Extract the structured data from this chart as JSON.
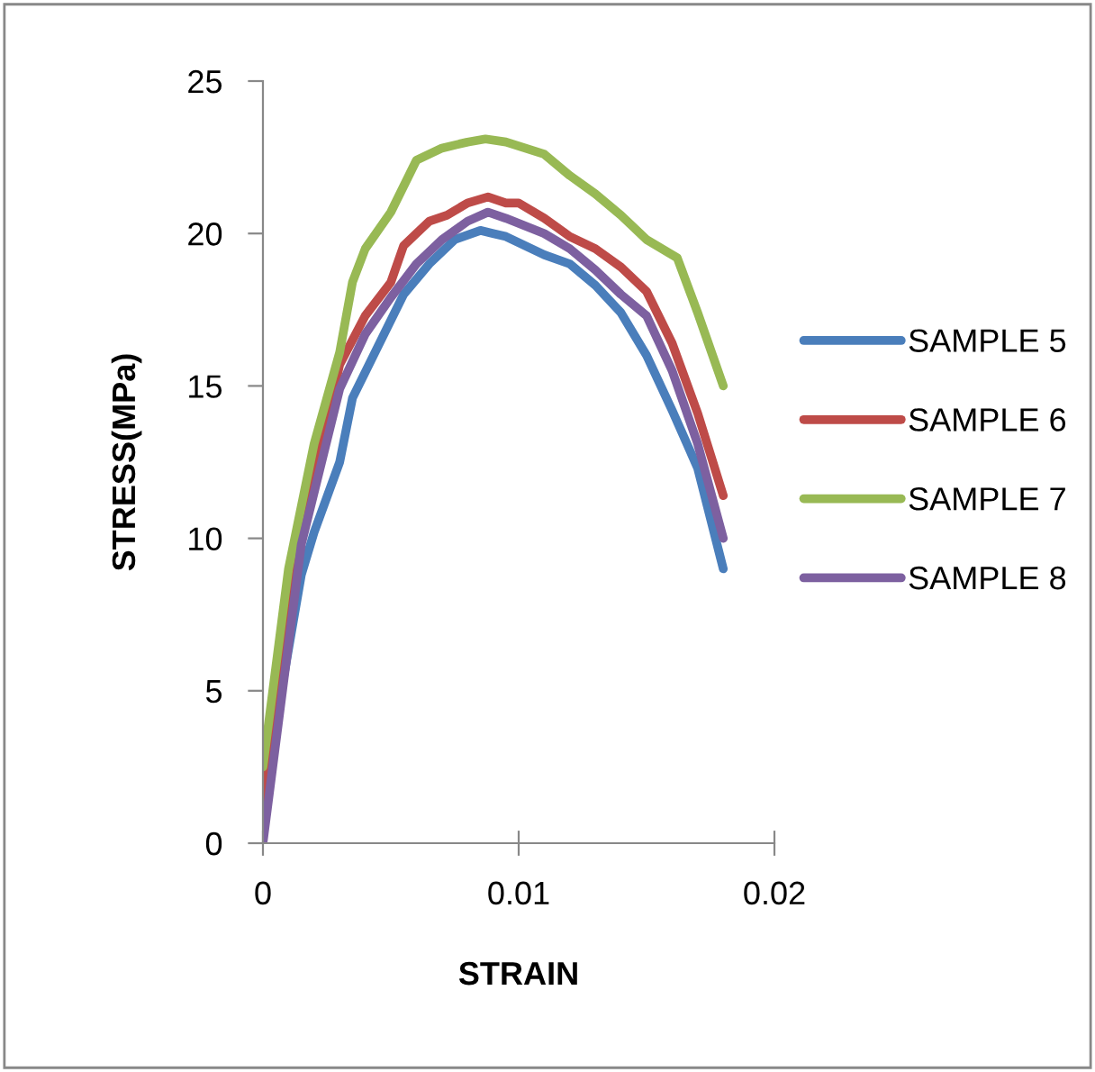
{
  "chart_data": {
    "type": "line",
    "xlabel": "STRAIN",
    "ylabel": "STRESS(MPa)",
    "xlim": [
      0,
      0.02
    ],
    "xticks": [
      0,
      0.01,
      0.02
    ],
    "ylim": [
      0,
      25
    ],
    "yticks": [
      0,
      5,
      10,
      15,
      20,
      25
    ],
    "grid": false,
    "legend": "right",
    "marker": "none",
    "line_style": "solid",
    "series": [
      {
        "name": "SAMPLE 5",
        "color": "#4a7ebb",
        "x": [
          0,
          0.0015,
          0.002,
          0.003,
          0.0035,
          0.0045,
          0.0055,
          0.0065,
          0.0075,
          0.0085,
          0.009,
          0.0095,
          0.011,
          0.012,
          0.013,
          0.014,
          0.015,
          0.016,
          0.017,
          0.018
        ],
        "values": [
          1.5,
          8.8,
          10.2,
          12.5,
          14.6,
          16.3,
          18.0,
          19.0,
          19.8,
          20.1,
          20.0,
          19.9,
          19.3,
          19.0,
          18.3,
          17.4,
          16.0,
          14.2,
          12.3,
          9.0
        ]
      },
      {
        "name": "SAMPLE 6",
        "color": "#be4b48",
        "x": [
          0,
          0.0015,
          0.003,
          0.004,
          0.005,
          0.0055,
          0.0065,
          0.0072,
          0.008,
          0.0088,
          0.0095,
          0.01,
          0.011,
          0.012,
          0.013,
          0.014,
          0.015,
          0.016,
          0.017,
          0.018
        ],
        "values": [
          1.5,
          10.0,
          15.7,
          17.3,
          18.4,
          19.6,
          20.4,
          20.6,
          21.0,
          21.2,
          21.0,
          21.0,
          20.5,
          19.9,
          19.5,
          18.9,
          18.1,
          16.4,
          14.1,
          11.4
        ]
      },
      {
        "name": "SAMPLE 7",
        "color": "#98b954",
        "x": [
          0,
          0.001,
          0.002,
          0.003,
          0.0035,
          0.004,
          0.005,
          0.006,
          0.007,
          0.008,
          0.0087,
          0.0095,
          0.011,
          0.012,
          0.013,
          0.014,
          0.015,
          0.0162,
          0.017,
          0.018
        ],
        "values": [
          2.5,
          9.0,
          13.1,
          16.1,
          18.4,
          19.5,
          20.7,
          22.4,
          22.8,
          23.0,
          23.1,
          23.0,
          22.6,
          21.9,
          21.3,
          20.6,
          19.8,
          19.2,
          17.4,
          15.0
        ]
      },
      {
        "name": "SAMPLE 8",
        "color": "#7d60a0",
        "x": [
          0,
          0.0015,
          0.003,
          0.004,
          0.005,
          0.006,
          0.007,
          0.008,
          0.0088,
          0.0095,
          0.011,
          0.012,
          0.013,
          0.014,
          0.015,
          0.016,
          0.017,
          0.018
        ],
        "values": [
          0,
          9.8,
          14.9,
          16.7,
          17.9,
          19.0,
          19.8,
          20.4,
          20.7,
          20.5,
          20.0,
          19.5,
          18.8,
          18.0,
          17.3,
          15.5,
          13.1,
          10.0
        ]
      }
    ]
  }
}
